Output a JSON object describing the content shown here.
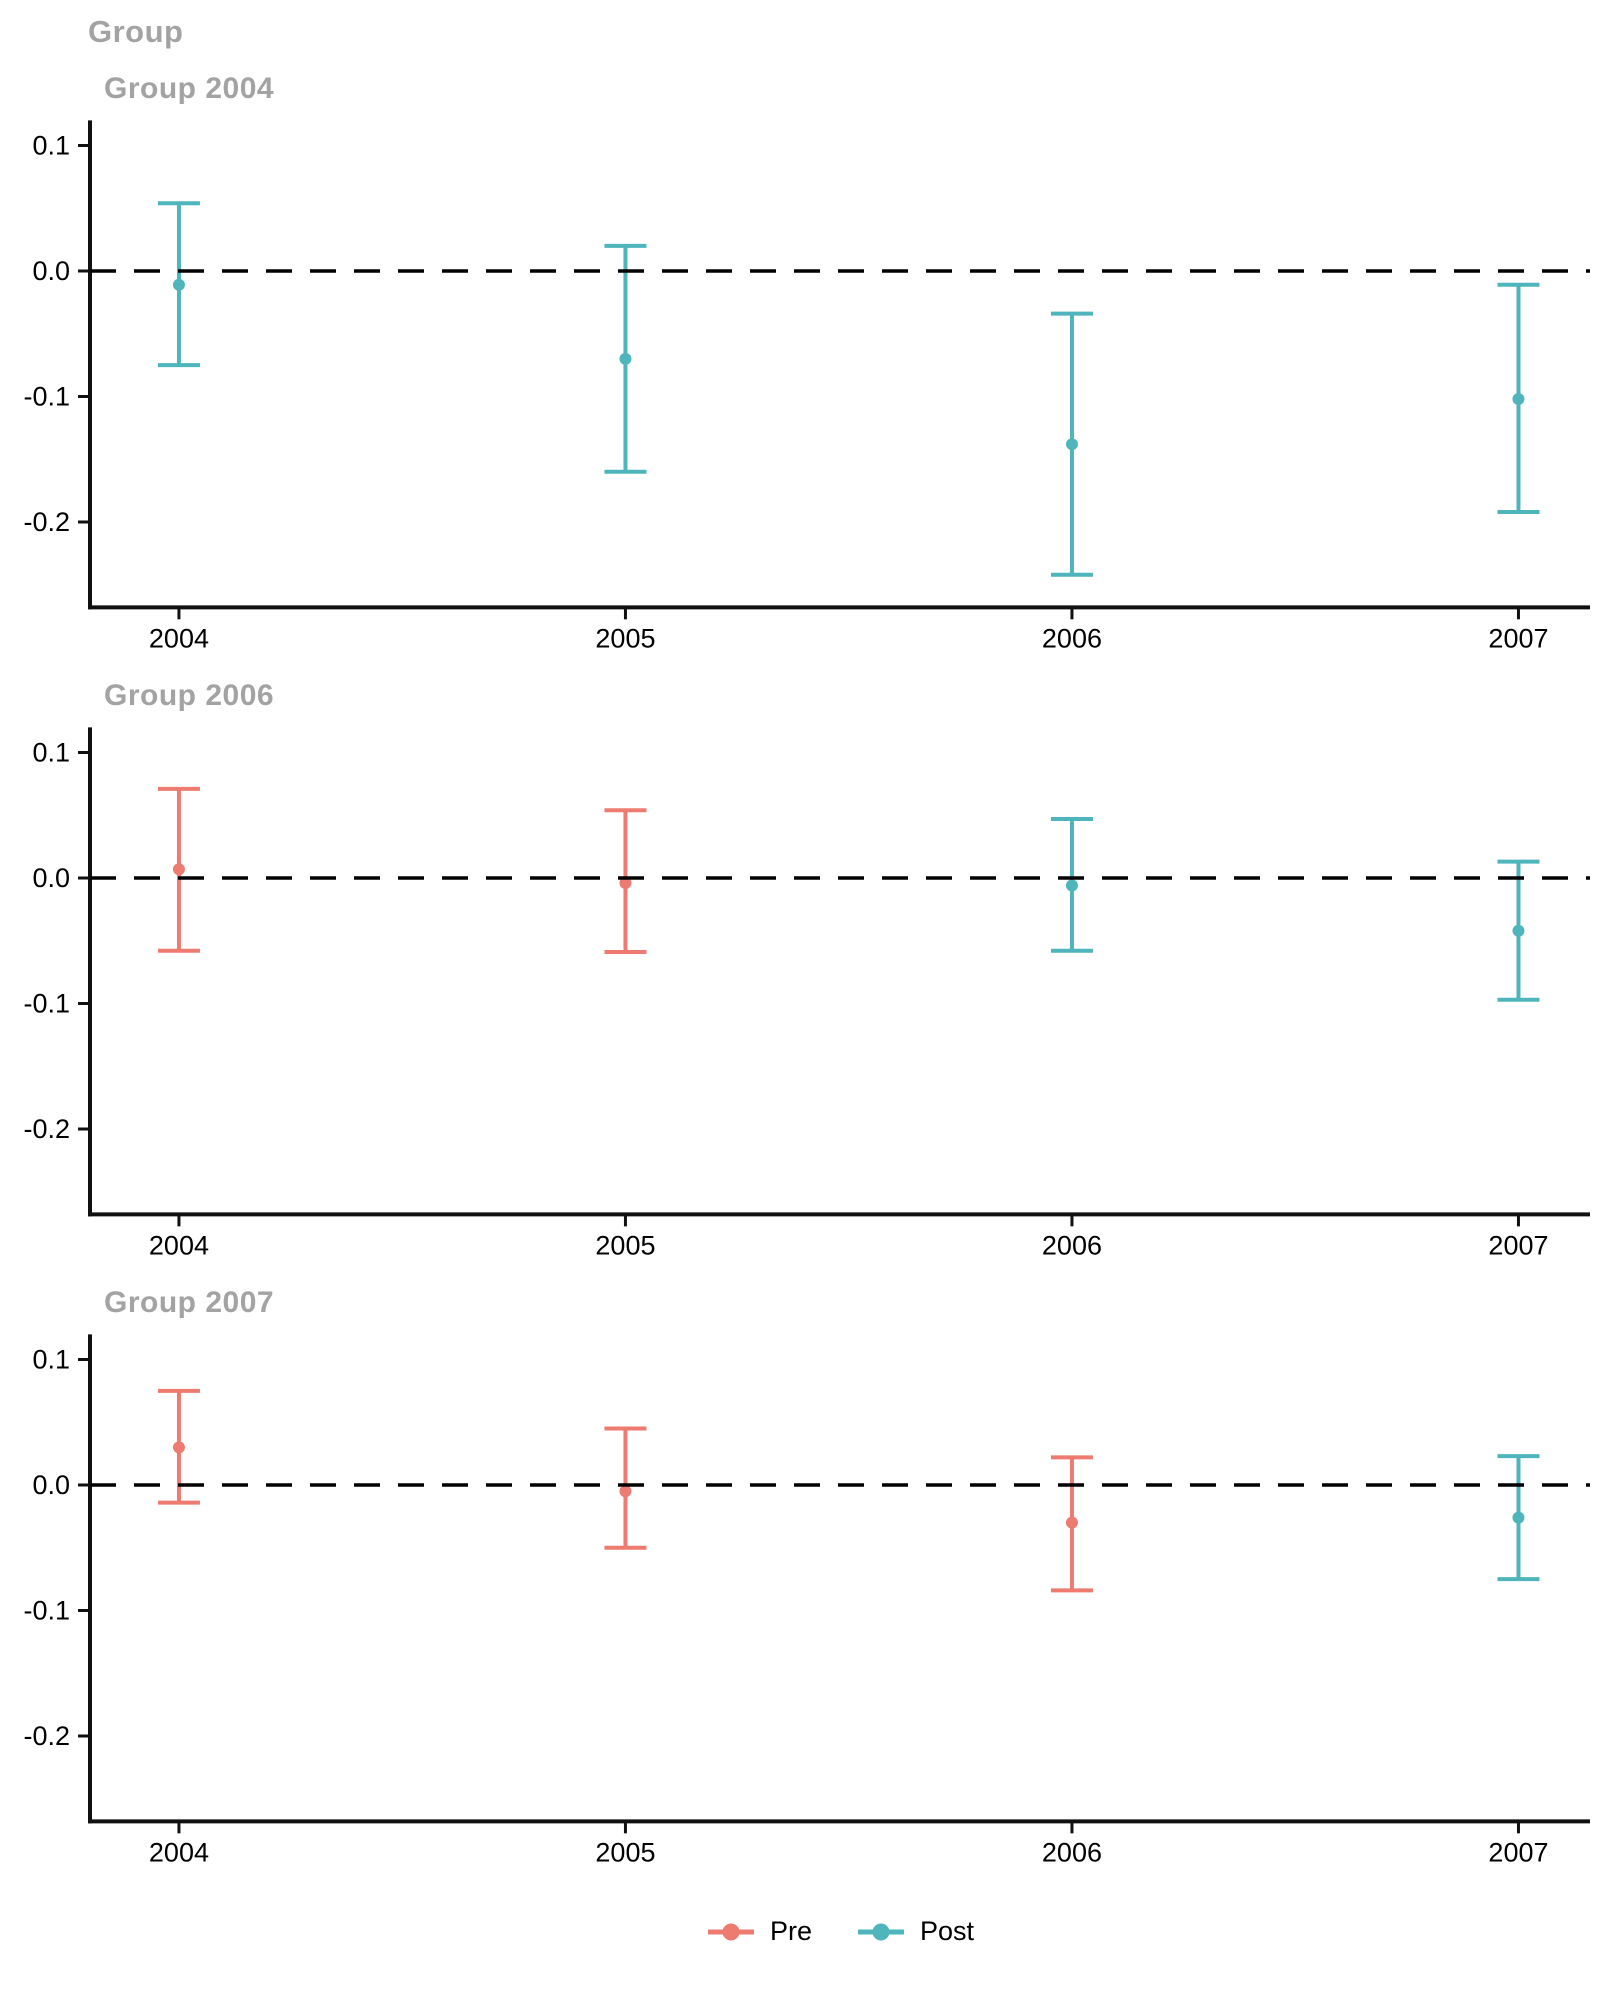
{
  "title": "Group",
  "legend": {
    "position": "bottom",
    "items": [
      {
        "label": "Pre",
        "color": "#ee7b70"
      },
      {
        "label": "Post",
        "color": "#4fb5bc"
      }
    ]
  },
  "chart_data": {
    "type": "scatter",
    "subtype": "point-range (estimates with confidence-interval error bars, faceted by treatment group)",
    "title": "Group",
    "xlabel": "",
    "ylabel": "",
    "x": [
      2004,
      2005,
      2006,
      2007
    ],
    "x_tick_labels": [
      "2004",
      "2005",
      "2006",
      "2007"
    ],
    "y_ticks": [
      0.1,
      0.0,
      -0.1,
      -0.2
    ],
    "y_tick_labels": [
      "0.1",
      "0.0",
      "-0.1",
      "-0.2"
    ],
    "ylim": [
      -0.268,
      0.12
    ],
    "reference_line_y": 0,
    "reference_line_style": "dashed",
    "grid": "off",
    "legend_position": "bottom",
    "series_colors": {
      "Pre": "#ee7b70",
      "Post": "#4fb5bc"
    },
    "panels": [
      {
        "title": "Group 2004",
        "points": [
          {
            "x": 2004,
            "series": "Post",
            "estimate": -0.011,
            "ci_low": -0.075,
            "ci_high": 0.054
          },
          {
            "x": 2005,
            "series": "Post",
            "estimate": -0.07,
            "ci_low": -0.16,
            "ci_high": 0.02
          },
          {
            "x": 2006,
            "series": "Post",
            "estimate": -0.138,
            "ci_low": -0.242,
            "ci_high": -0.034
          },
          {
            "x": 2007,
            "series": "Post",
            "estimate": -0.102,
            "ci_low": -0.192,
            "ci_high": -0.011
          }
        ]
      },
      {
        "title": "Group 2006",
        "points": [
          {
            "x": 2004,
            "series": "Pre",
            "estimate": 0.007,
            "ci_low": -0.058,
            "ci_high": 0.071
          },
          {
            "x": 2005,
            "series": "Pre",
            "estimate": -0.004,
            "ci_low": -0.059,
            "ci_high": 0.054
          },
          {
            "x": 2006,
            "series": "Post",
            "estimate": -0.006,
            "ci_low": -0.058,
            "ci_high": 0.047
          },
          {
            "x": 2007,
            "series": "Post",
            "estimate": -0.042,
            "ci_low": -0.097,
            "ci_high": 0.013
          }
        ]
      },
      {
        "title": "Group 2007",
        "points": [
          {
            "x": 2004,
            "series": "Pre",
            "estimate": 0.03,
            "ci_low": -0.014,
            "ci_high": 0.075
          },
          {
            "x": 2005,
            "series": "Pre",
            "estimate": -0.005,
            "ci_low": -0.05,
            "ci_high": 0.045
          },
          {
            "x": 2006,
            "series": "Pre",
            "estimate": -0.03,
            "ci_low": -0.084,
            "ci_high": 0.022
          },
          {
            "x": 2007,
            "series": "Post",
            "estimate": -0.026,
            "ci_low": -0.075,
            "ci_high": 0.023
          }
        ]
      }
    ],
    "colors": {
      "facet_title": "#a3a3a3",
      "axis": "#111111",
      "reference_line": "#000000",
      "background": "#ffffff"
    }
  }
}
